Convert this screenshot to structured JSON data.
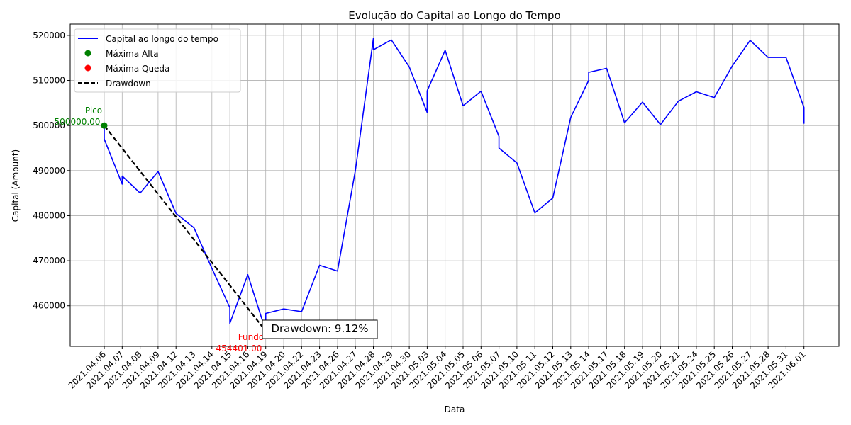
{
  "chart_data": {
    "type": "line",
    "title": "Evolução do Capital ao Longo do Tempo",
    "xlabel": "Data",
    "ylabel": "Capital (Amount)",
    "ylim": [
      451000,
      522500
    ],
    "yticks": [
      460000,
      470000,
      480000,
      490000,
      500000,
      510000,
      520000
    ],
    "ytick_labels": [
      "460000",
      "470000",
      "480000",
      "490000",
      "500000",
      "510000",
      "520000"
    ],
    "grid": true,
    "legend_position": "upper-left",
    "categories": [
      "2021.04.06",
      "2021.04.07",
      "2021.04.08",
      "2021.04.09",
      "2021.04.12",
      "2021.04.13",
      "2021.04.14",
      "2021.04.15",
      "2021.04.16",
      "2021.04.19",
      "2021.04.20",
      "2021.04.22",
      "2021.04.23",
      "2021.04.26",
      "2021.04.27",
      "2021.04.28",
      "2021.04.29",
      "2021.04.30",
      "2021.05.03",
      "2021.05.04",
      "2021.05.05",
      "2021.05.06",
      "2021.05.07",
      "2021.05.10",
      "2021.05.11",
      "2021.05.12",
      "2021.05.13",
      "2021.05.14",
      "2021.05.17",
      "2021.05.18",
      "2021.05.19",
      "2021.05.20",
      "2021.05.21",
      "2021.05.24",
      "2021.05.25",
      "2021.05.26",
      "2021.05.27",
      "2021.05.28",
      "2021.05.31",
      "2021.06.01"
    ],
    "series": [
      {
        "name": "Capital ao longo do tempo",
        "color": "#0000ff",
        "points": [
          [
            0,
            500000
          ],
          [
            0,
            497000
          ],
          [
            1,
            487000
          ],
          [
            1,
            488800
          ],
          [
            2,
            485000
          ],
          [
            3,
            489800
          ],
          [
            4,
            480500
          ],
          [
            5,
            477300
          ],
          [
            6,
            468300
          ],
          [
            7,
            459600
          ],
          [
            7,
            456100
          ],
          [
            8,
            466900
          ],
          [
            9,
            454400
          ],
          [
            9,
            458300
          ],
          [
            10,
            459300
          ],
          [
            11,
            458700
          ],
          [
            12,
            469000
          ],
          [
            13,
            467700
          ],
          [
            14,
            490100
          ],
          [
            15,
            519300
          ],
          [
            15,
            516800
          ],
          [
            16,
            519000
          ],
          [
            17,
            513000
          ],
          [
            18,
            502900
          ],
          [
            18,
            507700
          ],
          [
            19,
            516700
          ],
          [
            20,
            504400
          ],
          [
            21,
            507600
          ],
          [
            22,
            497600
          ],
          [
            22,
            495000
          ],
          [
            23,
            491700
          ],
          [
            24,
            480600
          ],
          [
            25,
            483900
          ],
          [
            26,
            501800
          ],
          [
            27,
            510000
          ],
          [
            27,
            511800
          ],
          [
            28,
            512700
          ],
          [
            29,
            500600
          ],
          [
            30,
            505200
          ],
          [
            31,
            500200
          ],
          [
            32,
            505400
          ],
          [
            33,
            507500
          ],
          [
            34,
            506200
          ],
          [
            35,
            513200
          ],
          [
            36,
            518900
          ],
          [
            37,
            515100
          ],
          [
            38,
            515100
          ],
          [
            39,
            504000
          ],
          [
            39,
            500400
          ]
        ]
      },
      {
        "name": "Máxima Alta",
        "color": "#008000",
        "x": 0,
        "y": 500000
      },
      {
        "name": "Máxima Queda",
        "color": "#ff0000",
        "x": 9,
        "y": 454401
      },
      {
        "name": "Drawdown",
        "color": "#000000",
        "from": [
          0,
          500000
        ],
        "to": [
          9,
          454401
        ]
      }
    ],
    "annotations": {
      "peak_label": "Pico",
      "peak_value": "500000.00",
      "trough_label": "Fundo",
      "trough_value": "454401.00",
      "drawdown_box": "Drawdown: 9.12%"
    }
  }
}
